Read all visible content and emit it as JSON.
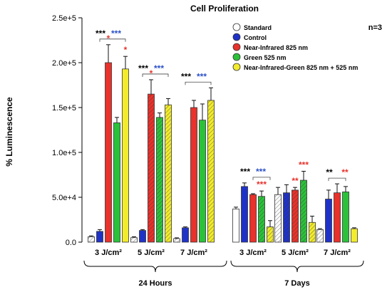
{
  "chart_data": {
    "type": "bar",
    "title": "Cell Proliferation",
    "ylabel": "% Luminescence",
    "xlabel": "",
    "ylim": [
      0,
      250000
    ],
    "y_ticks": [
      0,
      50000,
      100000,
      150000,
      200000,
      250000
    ],
    "y_tick_labels": [
      "0.0",
      "5.0e+4",
      "1.0e+5",
      "1.5e+5",
      "2.0e+5",
      "2.5e+5"
    ],
    "annotation": "n=3",
    "legend_position": "top-right",
    "groups": [
      {
        "label": "24 Hours",
        "categories": [
          "3 J/cm²",
          "5 J/cm²",
          "7 J/cm²"
        ]
      },
      {
        "label": "7 Days",
        "categories": [
          "3 J/cm²",
          "5 J/cm²",
          "7 J/cm²"
        ]
      }
    ],
    "categories": [
      "3 J/cm²",
      "5 J/cm²",
      "7 J/cm²",
      "3 J/cm²",
      "5 J/cm²",
      "7 J/cm²"
    ],
    "series": [
      {
        "name": "Standard",
        "color": "#ffffff",
        "pattern": "open",
        "values": [
          6000,
          5000,
          4000,
          37000,
          53000,
          14000
        ],
        "errors": [
          1000,
          1000,
          800,
          2000,
          8000,
          1000
        ]
      },
      {
        "name": "Control",
        "color": "#1f32c8",
        "pattern": "solid",
        "values": [
          12000,
          13000,
          16000,
          62000,
          55000,
          48000
        ],
        "errors": [
          2000,
          1000,
          1000,
          4000,
          9000,
          10000
        ]
      },
      {
        "name": "Near-Infrared 825 nm",
        "color": "#e8322b",
        "pattern": "solid",
        "values": [
          200000,
          165000,
          150000,
          53000,
          58000,
          55000
        ],
        "errors": [
          20000,
          16000,
          8000,
          1000,
          3000,
          10000
        ]
      },
      {
        "name": "Green 525 nm",
        "color": "#2bc23a",
        "pattern": "solid",
        "values": [
          133000,
          139000,
          136000,
          51000,
          69000,
          56000
        ],
        "errors": [
          6000,
          5000,
          18000,
          6000,
          10000,
          6000
        ]
      },
      {
        "name": "Near-Infrared-Green 825 nm + 525 nm",
        "color": "#f2ec2c",
        "pattern": "solid",
        "values": [
          193000,
          153000,
          158000,
          17000,
          22000,
          15000
        ],
        "errors": [
          14000,
          7000,
          14000,
          7000,
          7000,
          1000
        ]
      }
    ],
    "hatched_bars": [
      {
        "series": 0,
        "category": 0
      },
      {
        "series": 0,
        "category": 1
      },
      {
        "series": 0,
        "category": 2
      },
      {
        "series": 0,
        "category": 4
      },
      {
        "series": 0,
        "category": 5
      },
      {
        "series": 1,
        "category": 4
      },
      {
        "series": 2,
        "category": 1
      },
      {
        "series": 2,
        "category": 4
      },
      {
        "series": 3,
        "category": 1
      },
      {
        "series": 3,
        "category": 3
      },
      {
        "series": 3,
        "category": 4
      },
      {
        "series": 4,
        "category": 1
      },
      {
        "series": 4,
        "category": 2
      },
      {
        "series": 4,
        "category": 3
      },
      {
        "series": 4,
        "category": 4
      }
    ],
    "significance": [
      {
        "category": 0,
        "marks": [
          {
            "text": "***",
            "color": "#000000"
          },
          {
            "text": "***",
            "color": "#2a50c8"
          }
        ],
        "bracket": [
          1,
          4
        ],
        "sub_marks": [
          {
            "text": "*",
            "color": "#e8322b",
            "series": 2
          },
          {
            "text": "*",
            "color": "#e8322b",
            "series": 4
          }
        ]
      },
      {
        "category": 1,
        "marks": [
          {
            "text": "***",
            "color": "#000000"
          },
          {
            "text": "***",
            "color": "#2a50c8"
          }
        ],
        "bracket": [
          1,
          4
        ],
        "sub_marks": [
          {
            "text": "*",
            "color": "#e8322b",
            "series": 2
          }
        ]
      },
      {
        "category": 2,
        "marks": [
          {
            "text": "***",
            "color": "#000000"
          },
          {
            "text": "***",
            "color": "#2a50c8"
          }
        ],
        "bracket": [
          1,
          4
        ],
        "sub_marks": []
      },
      {
        "category": 3,
        "marks": [
          {
            "text": "***",
            "color": "#000000"
          },
          {
            "text": "***",
            "color": "#2a50c8"
          }
        ],
        "bracket": [
          2,
          4
        ],
        "sub_marks": [
          {
            "text": "***",
            "color": "#e8322b",
            "series": 3
          }
        ]
      },
      {
        "category": 4,
        "marks": [],
        "bracket": null,
        "sub_marks": [
          {
            "text": "**",
            "color": "#e8322b",
            "series": 2
          },
          {
            "text": "***",
            "color": "#e8322b",
            "series": 3
          }
        ]
      },
      {
        "category": 5,
        "marks": [
          {
            "text": "**",
            "color": "#000000"
          },
          {
            "text": "**",
            "color": "#e8322b"
          }
        ],
        "bracket": [
          1,
          3
        ],
        "sub_marks": []
      }
    ]
  }
}
